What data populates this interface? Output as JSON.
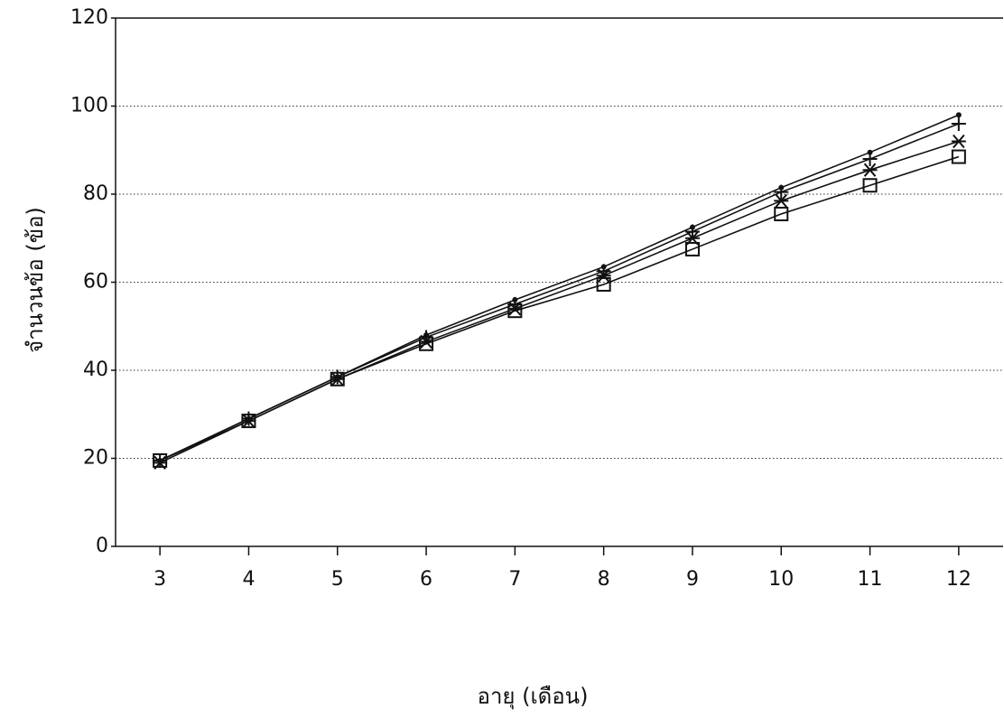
{
  "chart_data": {
    "type": "line",
    "x_label": "อายุ (เดือน)",
    "y_label": "จำนวนข้อ (ข้อ)",
    "x": [
      3,
      4,
      5,
      6,
      7,
      8,
      9,
      10,
      11,
      12
    ],
    "xlim": [
      2.5,
      12.5
    ],
    "xticks": [
      3,
      4,
      5,
      6,
      7,
      8,
      9,
      10,
      11,
      12
    ],
    "ylim": [
      0,
      120
    ],
    "yticks": [
      0,
      20,
      40,
      60,
      80,
      100,
      120
    ],
    "grid": true,
    "series": [
      {
        "marker": "dot",
        "color": "#111111",
        "values": [
          19.5,
          29,
          38.5,
          48,
          56,
          63.5,
          72.5,
          81.5,
          89.5,
          98
        ]
      },
      {
        "marker": "plus",
        "color": "#111111",
        "values": [
          19.5,
          29,
          38.5,
          47.5,
          55,
          62.5,
          71.5,
          80.5,
          88,
          96
        ]
      },
      {
        "marker": "asterisk",
        "color": "#111111",
        "values": [
          19,
          28.5,
          38,
          46.5,
          54,
          61.5,
          70,
          78.5,
          85.5,
          92
        ]
      },
      {
        "marker": "square",
        "color": "#111111",
        "values": [
          19.5,
          28.5,
          38,
          46,
          53.5,
          59.5,
          67.5,
          75.5,
          82,
          88.5
        ]
      }
    ]
  }
}
